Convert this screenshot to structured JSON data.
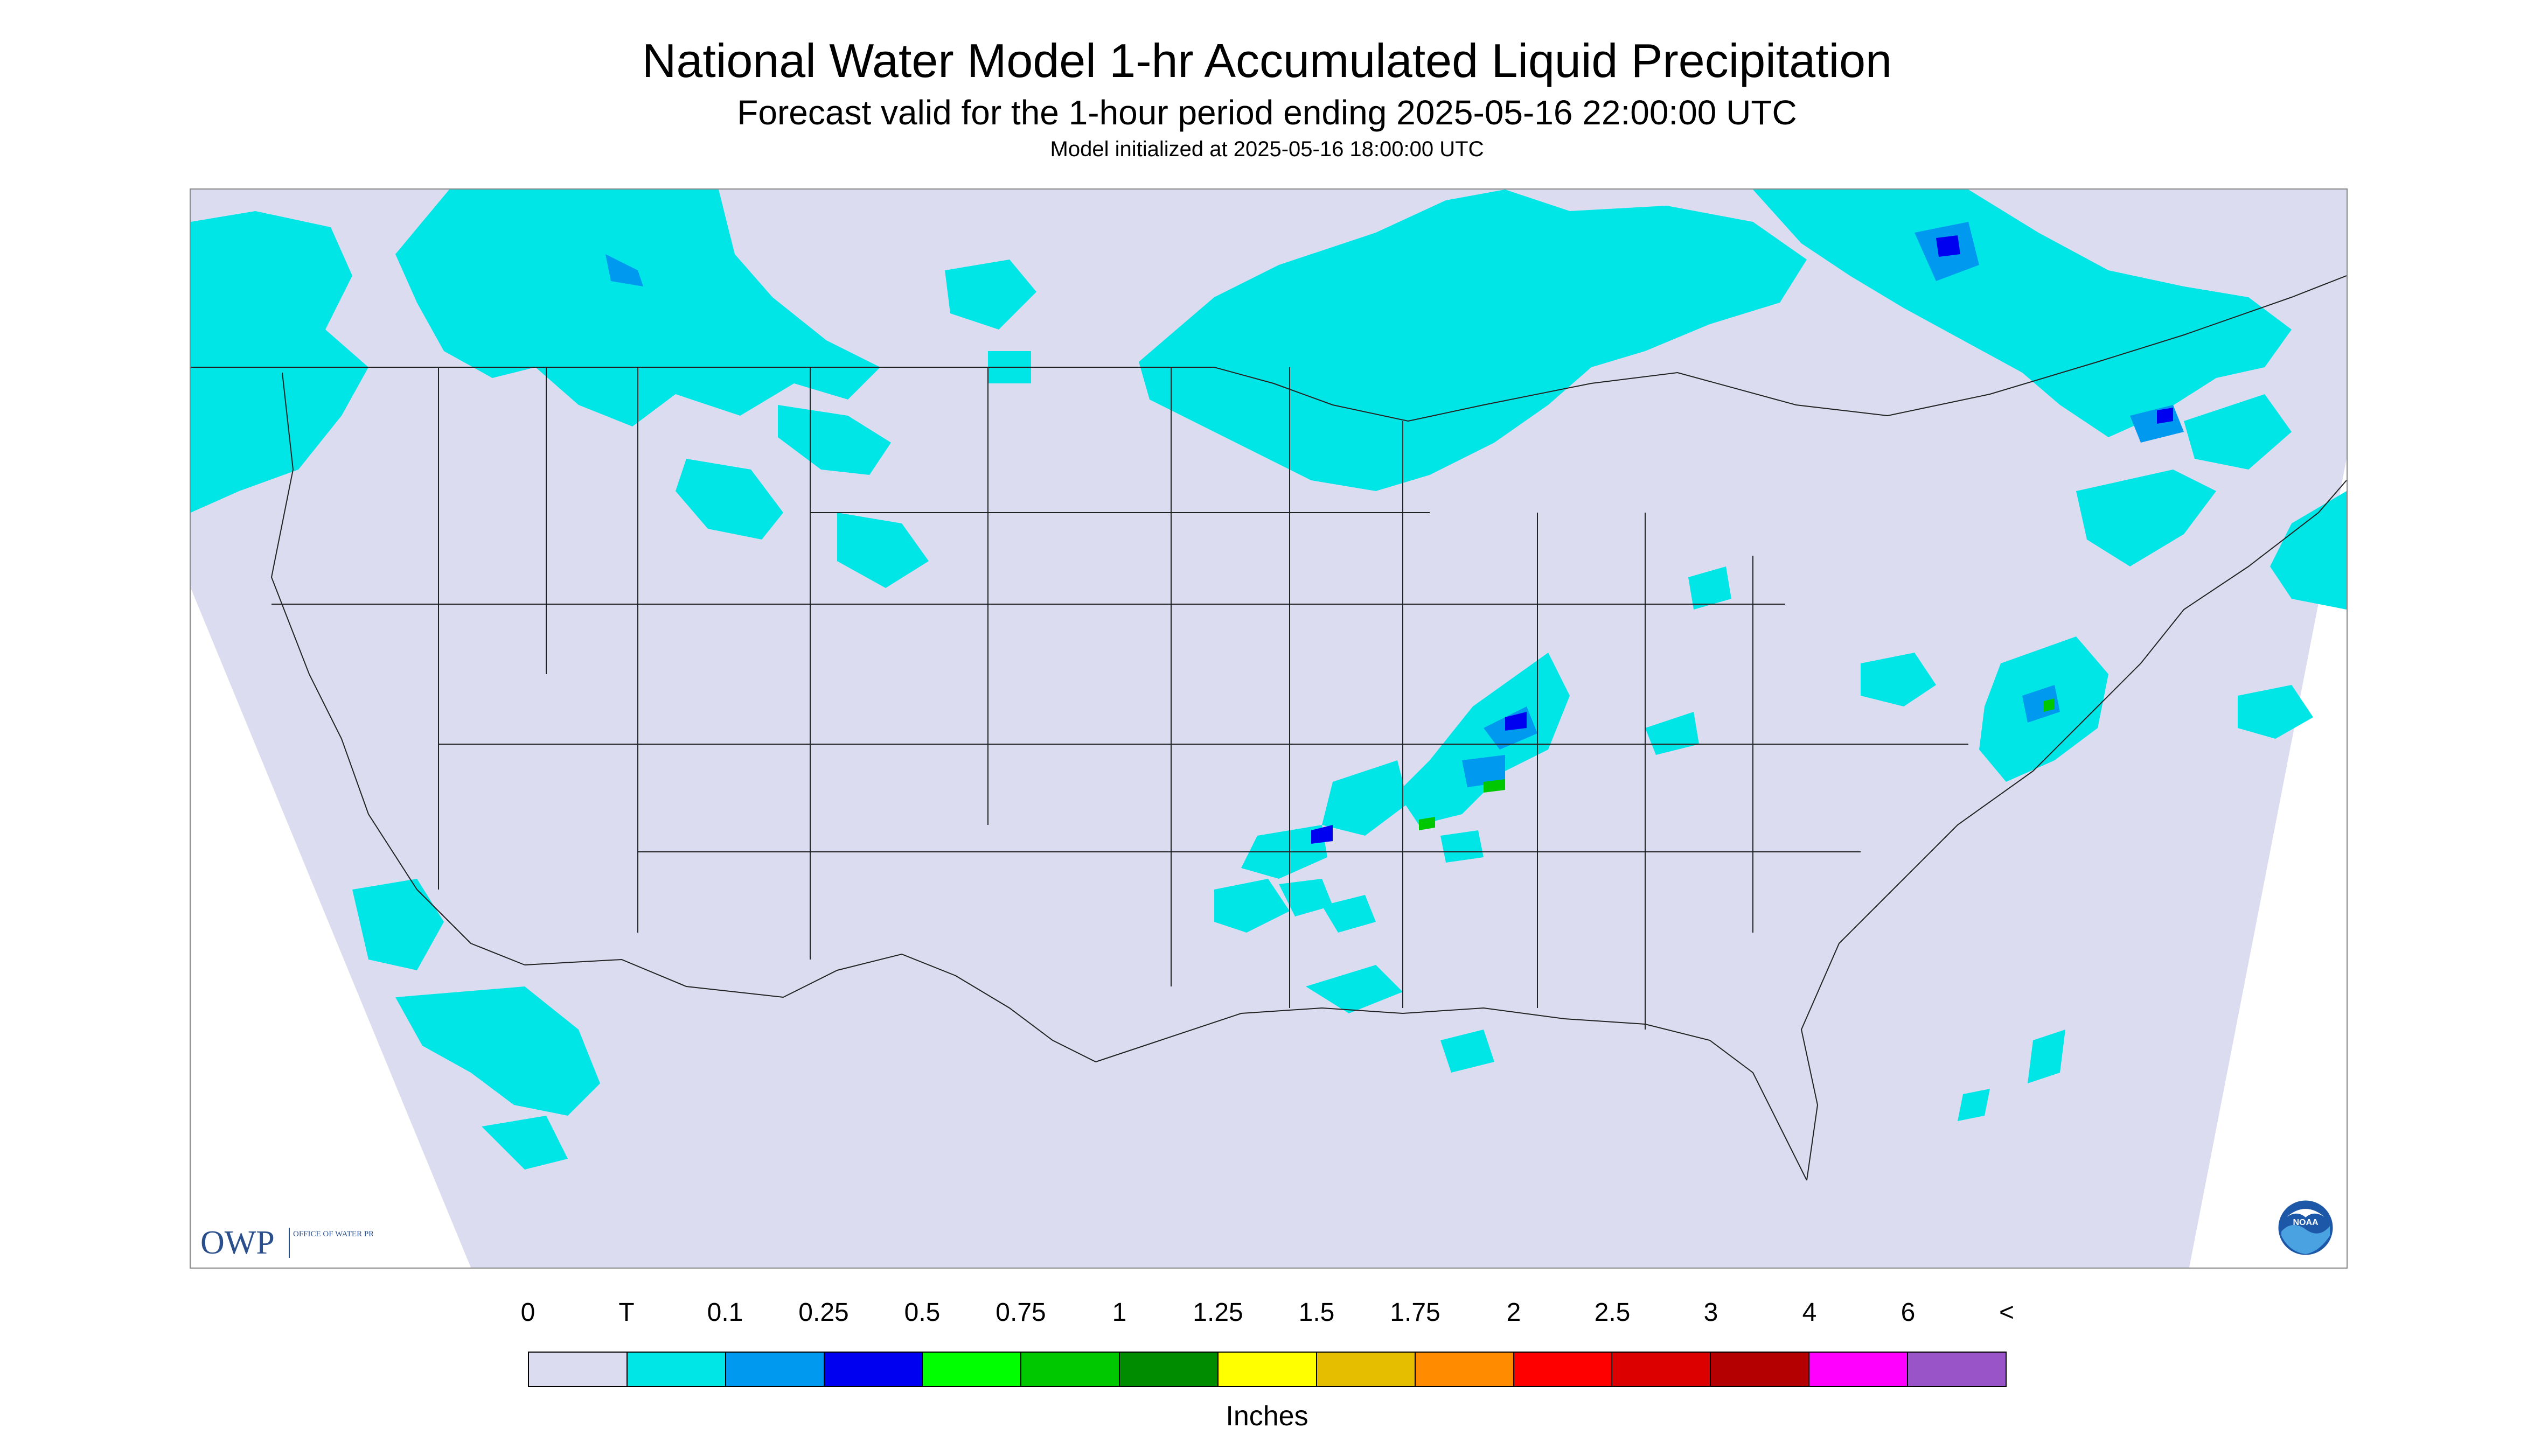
{
  "header": {
    "title": "National Water Model 1-hr Accumulated Liquid Precipitation",
    "subtitle": "Forecast valid for the 1-hour period ending 2025-05-16 22:00:00 UTC",
    "init_line": "Model initialized at 2025-05-16 18:00:00 UTC"
  },
  "logos": {
    "owp_mark": "OWP",
    "owp_text": "OFFICE OF WATER PREDICTION",
    "noaa": "NOAA"
  },
  "legend": {
    "tick_labels": [
      "0",
      "T",
      "0.1",
      "0.25",
      "0.5",
      "0.75",
      "1",
      "1.25",
      "1.5",
      "1.75",
      "2",
      "2.5",
      "3",
      "4",
      "6",
      "<"
    ],
    "colors": [
      "#dcdcf0",
      "#00e5e5",
      "#0099f0",
      "#0000f0",
      "#00ff00",
      "#00c800",
      "#008c00",
      "#ffff00",
      "#e6be00",
      "#ff8c00",
      "#ff0000",
      "#dc0000",
      "#b40000",
      "#ff00ff",
      "#9955c8"
    ],
    "units": "Inches"
  },
  "map": {
    "domain_fill": "#dcdcf0",
    "light_precip_color": "#00e5e5",
    "moderate_precip_color": "#0099f0",
    "heavy_precip_color": "#0000f0",
    "extreme_precip_color": "#00c800"
  }
}
